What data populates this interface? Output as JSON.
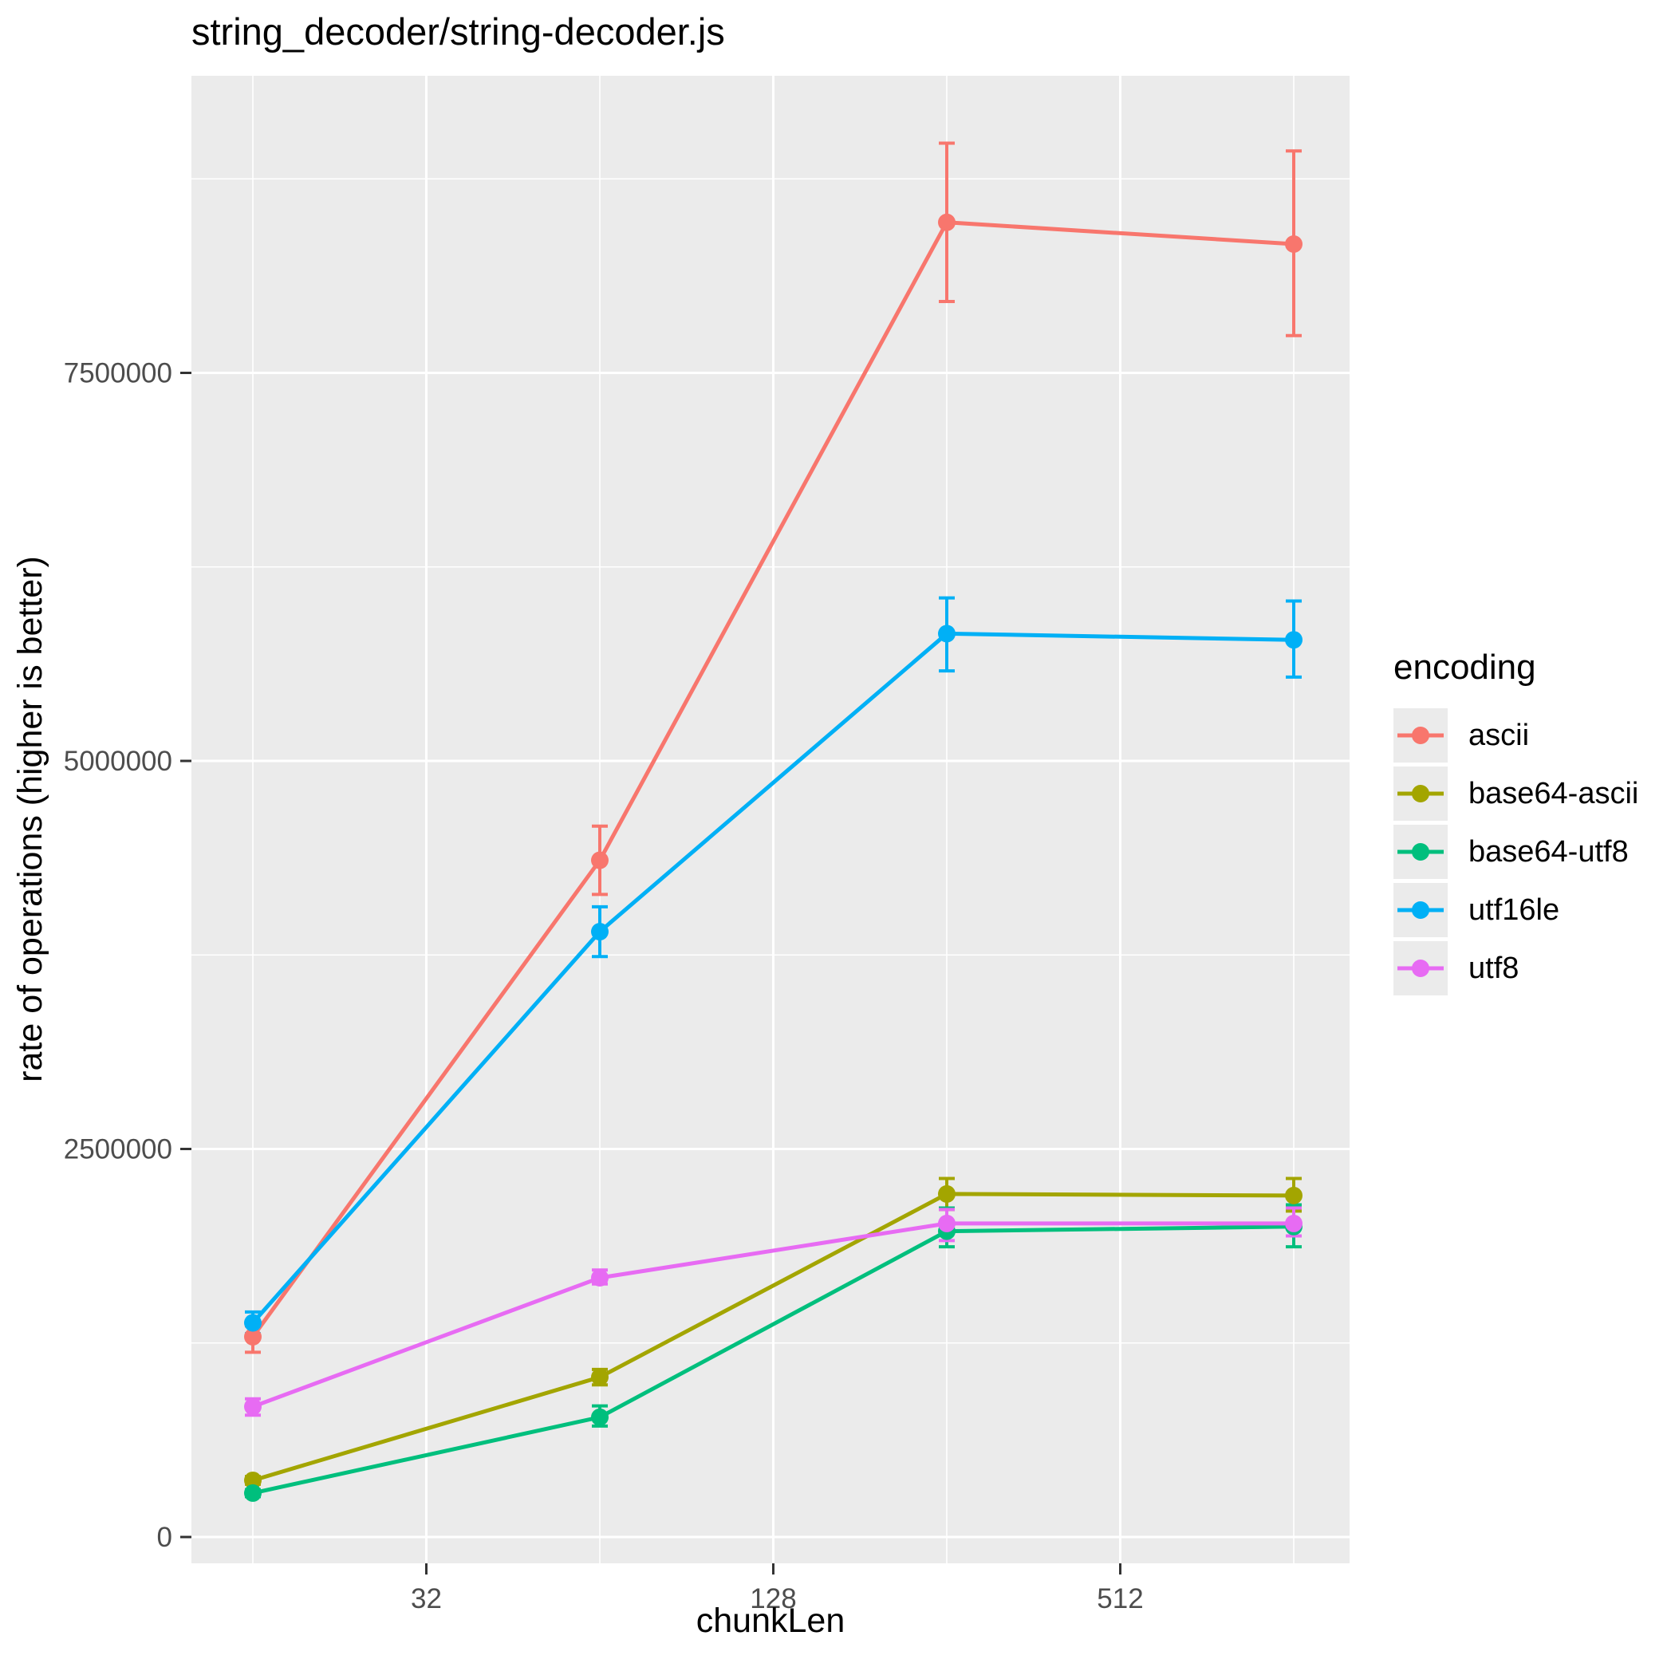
{
  "title": "string_decoder/string-decoder.js",
  "x_axis": {
    "label": "chunkLen",
    "tick_labels": [
      "32",
      "128",
      "512"
    ]
  },
  "y_axis": {
    "label": "rate of operations (higher is better)",
    "tick_labels": [
      "0",
      "2500000",
      "5000000",
      "7500000"
    ]
  },
  "legend": {
    "title": "encoding",
    "items": [
      "ascii",
      "base64-ascii",
      "base64-utf8",
      "utf16le",
      "utf8"
    ]
  },
  "colors": {
    "panel_background": "#EBEBEB",
    "gridline": "#FFFFFF",
    "tick_mark": "#333333",
    "tick_label": "#4D4D4D",
    "title_text": "#000000"
  },
  "chart_data": {
    "type": "line",
    "title": "string_decoder/string-decoder.js",
    "xlabel": "chunkLen",
    "ylabel": "rate of operations (higher is better)",
    "x_scale": "log2",
    "x": [
      16,
      64,
      256,
      1024
    ],
    "x_major_breaks": [
      32,
      128,
      512
    ],
    "x_minor_breaks": [
      16,
      64,
      256,
      1024
    ],
    "y_major_breaks": [
      0,
      2500000,
      5000000,
      7500000
    ],
    "y_minor_breaks": [
      1250000,
      3750000,
      6250000,
      8750000
    ],
    "ylim": [
      -170000,
      9410000
    ],
    "grid": true,
    "legend_position": "right",
    "legend_title": "encoding",
    "error_bars": true,
    "series": [
      {
        "name": "ascii",
        "color": "#F8766D",
        "values": [
          1290000,
          4360000,
          8470000,
          8330000
        ],
        "err_low": [
          1190000,
          4140000,
          7960000,
          7740000
        ],
        "err_high": [
          1360000,
          4580000,
          8980000,
          8930000
        ]
      },
      {
        "name": "base64-ascii",
        "color": "#A3A500",
        "values": [
          365000,
          1030000,
          2210000,
          2200000
        ],
        "err_low": [
          340000,
          980000,
          2110000,
          2100000
        ],
        "err_high": [
          390000,
          1080000,
          2310000,
          2310000
        ]
      },
      {
        "name": "base64-utf8",
        "color": "#00BF7D",
        "values": [
          283000,
          772000,
          1970000,
          2000000
        ],
        "err_low": [
          260000,
          715000,
          1870000,
          1870000
        ],
        "err_high": [
          305000,
          845000,
          2120000,
          2140000
        ]
      },
      {
        "name": "utf16le",
        "color": "#00B0F6",
        "values": [
          1380000,
          3900000,
          5820000,
          5780000
        ],
        "err_low": [
          1310000,
          3740000,
          5580000,
          5540000
        ],
        "err_high": [
          1450000,
          4060000,
          6050000,
          6030000
        ]
      },
      {
        "name": "utf8",
        "color": "#E76BF3",
        "values": [
          840000,
          1670000,
          2020000,
          2020000
        ],
        "err_low": [
          785000,
          1630000,
          1910000,
          1940000
        ],
        "err_high": [
          890000,
          1720000,
          2110000,
          2120000
        ]
      }
    ]
  }
}
